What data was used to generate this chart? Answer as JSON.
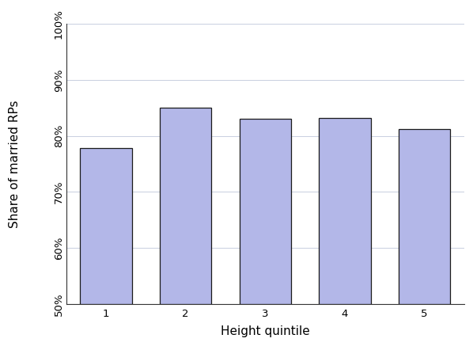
{
  "categories": [
    1,
    2,
    3,
    4,
    5
  ],
  "values": [
    0.778,
    0.851,
    0.831,
    0.832,
    0.812
  ],
  "bar_color": "#b3b7e8",
  "bar_edgecolor": "#1a1a1a",
  "xlabel": "Height quintile",
  "ylabel": "Share of married RPs",
  "ylim": [
    0.5,
    1.0
  ],
  "yticks": [
    0.5,
    0.6,
    0.7,
    0.8,
    0.9,
    1.0
  ],
  "xticks": [
    1,
    2,
    3,
    4,
    5
  ],
  "grid_color": "#c8cfe0",
  "background_color": "#ffffff",
  "bar_width": 0.65,
  "xlabel_fontsize": 11,
  "ylabel_fontsize": 11,
  "tick_fontsize": 9.5,
  "spine_color": "#333333"
}
